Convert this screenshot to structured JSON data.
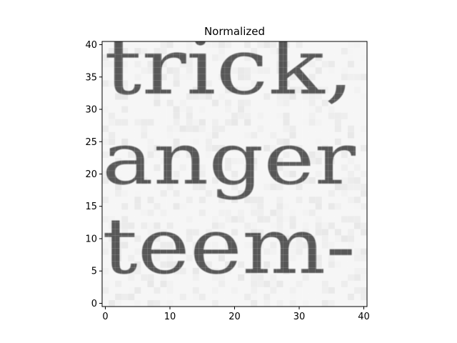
{
  "chart_data": {
    "type": "heatmap",
    "title": "Normalized",
    "colormap": "gray",
    "xlim": [
      -0.5,
      40.5
    ],
    "ylim": [
      40.5,
      -0.5
    ],
    "x_ticks": [
      0,
      10,
      20,
      30,
      40
    ],
    "y_ticks": [
      0,
      5,
      10,
      15,
      20,
      25,
      30,
      35,
      40
    ],
    "x_tick_labels": [
      "0",
      "10",
      "20",
      "30",
      "40"
    ],
    "y_tick_labels": [
      "0",
      "5",
      "10",
      "15",
      "20",
      "25",
      "30",
      "35",
      "40"
    ],
    "image_text_rows": [
      "trick,",
      "anger",
      "teem-"
    ],
    "highlight_box": {
      "x0": 15,
      "y0": 15,
      "x1": 24,
      "y1": 24,
      "color": "#ff0000"
    }
  }
}
